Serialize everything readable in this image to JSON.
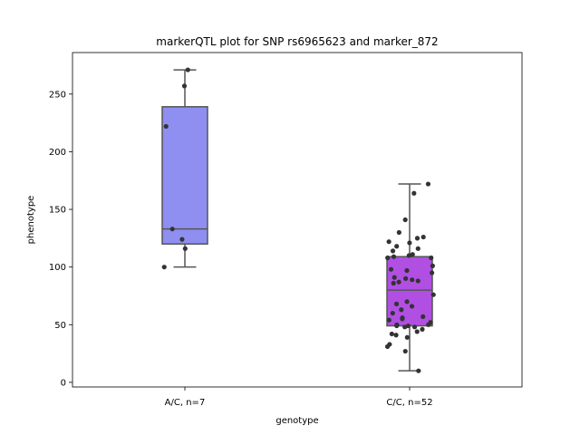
{
  "chart_data": {
    "type": "box",
    "title": "markerQTL plot for SNP rs6965623 and marker_872",
    "xlabel": "genotype",
    "ylabel": "phenotype",
    "ylim": [
      -4,
      286
    ],
    "yticks": [
      0,
      50,
      100,
      150,
      200,
      250
    ],
    "categories": [
      "A/C, n=7",
      "C/C, n=52"
    ],
    "groups": [
      {
        "category": "A/C, n=7",
        "color": "#8f8ff2",
        "whisker_low": 100,
        "q1": 120,
        "median": 133,
        "q3": 239,
        "whisker_high": 271,
        "points": [
          257,
          271,
          222,
          133,
          124,
          116,
          100
        ]
      },
      {
        "category": "C/C, n=52",
        "color": "#b14fe3",
        "whisker_low": 10,
        "q1": 49,
        "median": 80,
        "q3": 109,
        "whisker_high": 172,
        "points": [
          172,
          164,
          141,
          130,
          126,
          125,
          122,
          121,
          118,
          116,
          114,
          111,
          110,
          109,
          108,
          108,
          101,
          98,
          97,
          95,
          91,
          90,
          89,
          88,
          87,
          86,
          76,
          70,
          68,
          66,
          63,
          60,
          57,
          56,
          55,
          54,
          52,
          50,
          50,
          49,
          49,
          48,
          48,
          46,
          44,
          42,
          41,
          39,
          33,
          31,
          27,
          10
        ]
      }
    ]
  }
}
